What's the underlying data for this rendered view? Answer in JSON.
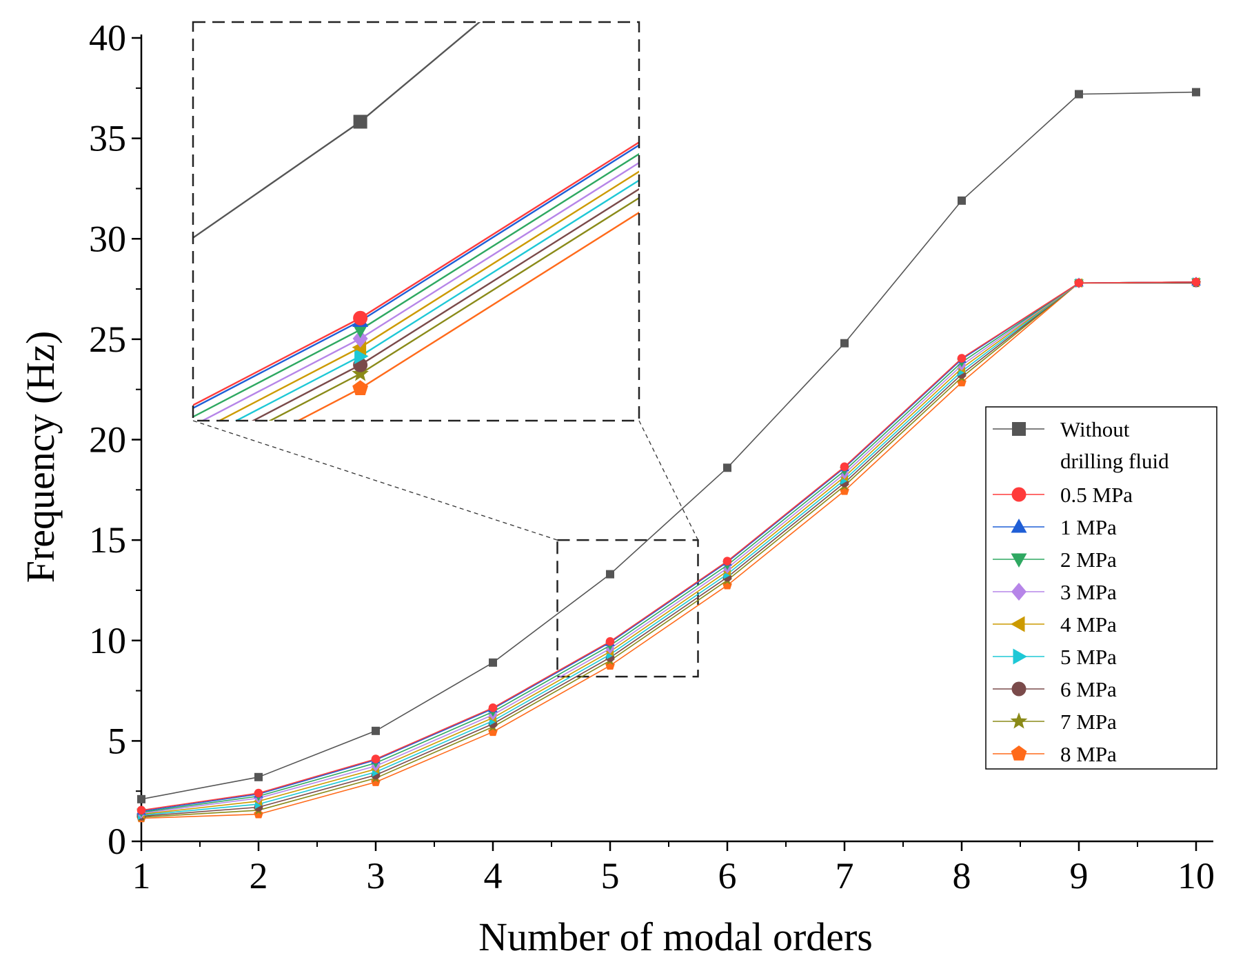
{
  "chart_data": {
    "type": "line",
    "title": "",
    "xlabel": "Number of modal orders",
    "ylabel": "Frequency (Hz)",
    "xlim": [
      1,
      10
    ],
    "ylim": [
      0,
      40
    ],
    "x": [
      1,
      2,
      3,
      4,
      5,
      6,
      7,
      8,
      9,
      10
    ],
    "x_ticks": [
      "1",
      "2",
      "3",
      "4",
      "5",
      "6",
      "7",
      "8",
      "9",
      "10"
    ],
    "y_ticks": [
      "0",
      "5",
      "10",
      "15",
      "20",
      "25",
      "30",
      "35",
      "40"
    ],
    "legend_position": "right",
    "series": [
      {
        "name": "Without drilling fluid",
        "legend_lines": [
          "Without",
          "drilling fluid"
        ],
        "color": "#555555",
        "marker": "square",
        "values": [
          2.1,
          3.2,
          5.5,
          8.9,
          13.3,
          18.6,
          24.8,
          31.9,
          37.2,
          37.3
        ]
      },
      {
        "name": "0.5 MPa",
        "color": "#ff3b3b",
        "marker": "circle",
        "values": [
          1.55,
          2.4,
          4.1,
          6.65,
          9.95,
          13.95,
          18.65,
          24.05,
          27.8,
          27.85
        ]
      },
      {
        "name": "1 MPa",
        "color": "#1f5ed6",
        "marker": "triangle-up",
        "values": [
          1.5,
          2.35,
          4.05,
          6.6,
          9.9,
          13.9,
          18.6,
          24.0,
          27.8,
          27.85
        ]
      },
      {
        "name": "2 MPa",
        "color": "#2ea861",
        "marker": "triangle-down",
        "values": [
          1.45,
          2.25,
          3.9,
          6.45,
          9.75,
          13.75,
          18.45,
          23.85,
          27.8,
          27.85
        ]
      },
      {
        "name": "3 MPa",
        "color": "#b685e8",
        "marker": "diamond",
        "values": [
          1.4,
          2.15,
          3.75,
          6.3,
          9.6,
          13.6,
          18.3,
          23.7,
          27.8,
          27.85
        ]
      },
      {
        "name": "4 MPa",
        "color": "#cc9a00",
        "marker": "triangle-left",
        "values": [
          1.35,
          2.0,
          3.6,
          6.15,
          9.45,
          13.45,
          18.15,
          23.55,
          27.8,
          27.85
        ]
      },
      {
        "name": "5 MPa",
        "color": "#1ec8d6",
        "marker": "triangle-right",
        "values": [
          1.3,
          1.85,
          3.45,
          6.0,
          9.3,
          13.3,
          18.0,
          23.4,
          27.8,
          27.85
        ]
      },
      {
        "name": "6 MPa",
        "color": "#7a4a4a",
        "marker": "circle",
        "values": [
          1.25,
          1.7,
          3.3,
          5.85,
          9.15,
          13.15,
          17.85,
          23.25,
          27.8,
          27.8
        ]
      },
      {
        "name": "7 MPa",
        "color": "#8a8a18",
        "marker": "star",
        "values": [
          1.2,
          1.55,
          3.15,
          5.7,
          9.0,
          13.0,
          17.7,
          23.1,
          27.8,
          27.8
        ]
      },
      {
        "name": "8 MPa",
        "color": "#ff6a1a",
        "marker": "pentagon",
        "values": [
          1.15,
          1.35,
          2.95,
          5.45,
          8.75,
          12.75,
          17.45,
          22.85,
          27.8,
          27.8
        ]
      }
    ],
    "inset": {
      "description": "zoomed view",
      "source_x_range": [
        4.55,
        5.75
      ],
      "source_y_range": [
        8.2,
        15.0
      ]
    }
  }
}
